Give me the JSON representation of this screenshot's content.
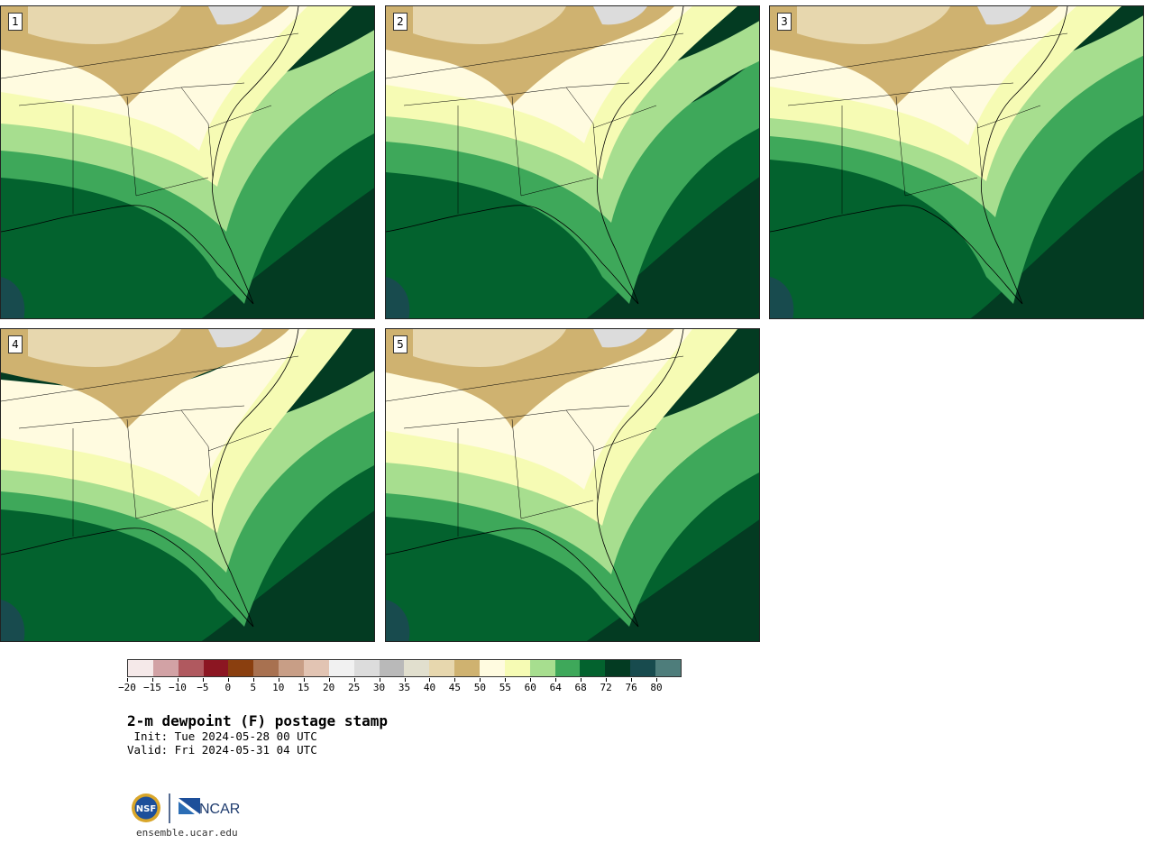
{
  "panels": [
    {
      "number": "1"
    },
    {
      "number": "2"
    },
    {
      "number": "3"
    },
    {
      "number": "4"
    },
    {
      "number": "5"
    }
  ],
  "colorbar": {
    "colors": [
      "#f5e9e9",
      "#d2a2a5",
      "#b0595f",
      "#8c1622",
      "#8a3f0f",
      "#a87150",
      "#c89e86",
      "#e2c4b3",
      "#f1f1f1",
      "#dcdcdc",
      "#b9b9b9",
      "#e1dfce",
      "#e7d7ae",
      "#cfb270",
      "#fffbe0",
      "#f6fbb4",
      "#a7de8f",
      "#3ea85a",
      "#03622e",
      "#033b22",
      "#184b4e",
      "#4e7d7b"
    ],
    "tick_labels": [
      "−20",
      "−15",
      "−10",
      "−5",
      "0",
      "5",
      "10",
      "15",
      "20",
      "25",
      "30",
      "35",
      "40",
      "45",
      "50",
      "55",
      "60",
      "64",
      "68",
      "72",
      "76",
      "80"
    ]
  },
  "title": "2-m dewpoint (F) postage stamp",
  "init": " Init: Tue 2024-05-28 00 UTC",
  "valid": "Valid: Fri 2024-05-31 04 UTC",
  "logo": {
    "left": "NSF",
    "right": "NCAR"
  },
  "site": "ensemble.ucar.edu"
}
